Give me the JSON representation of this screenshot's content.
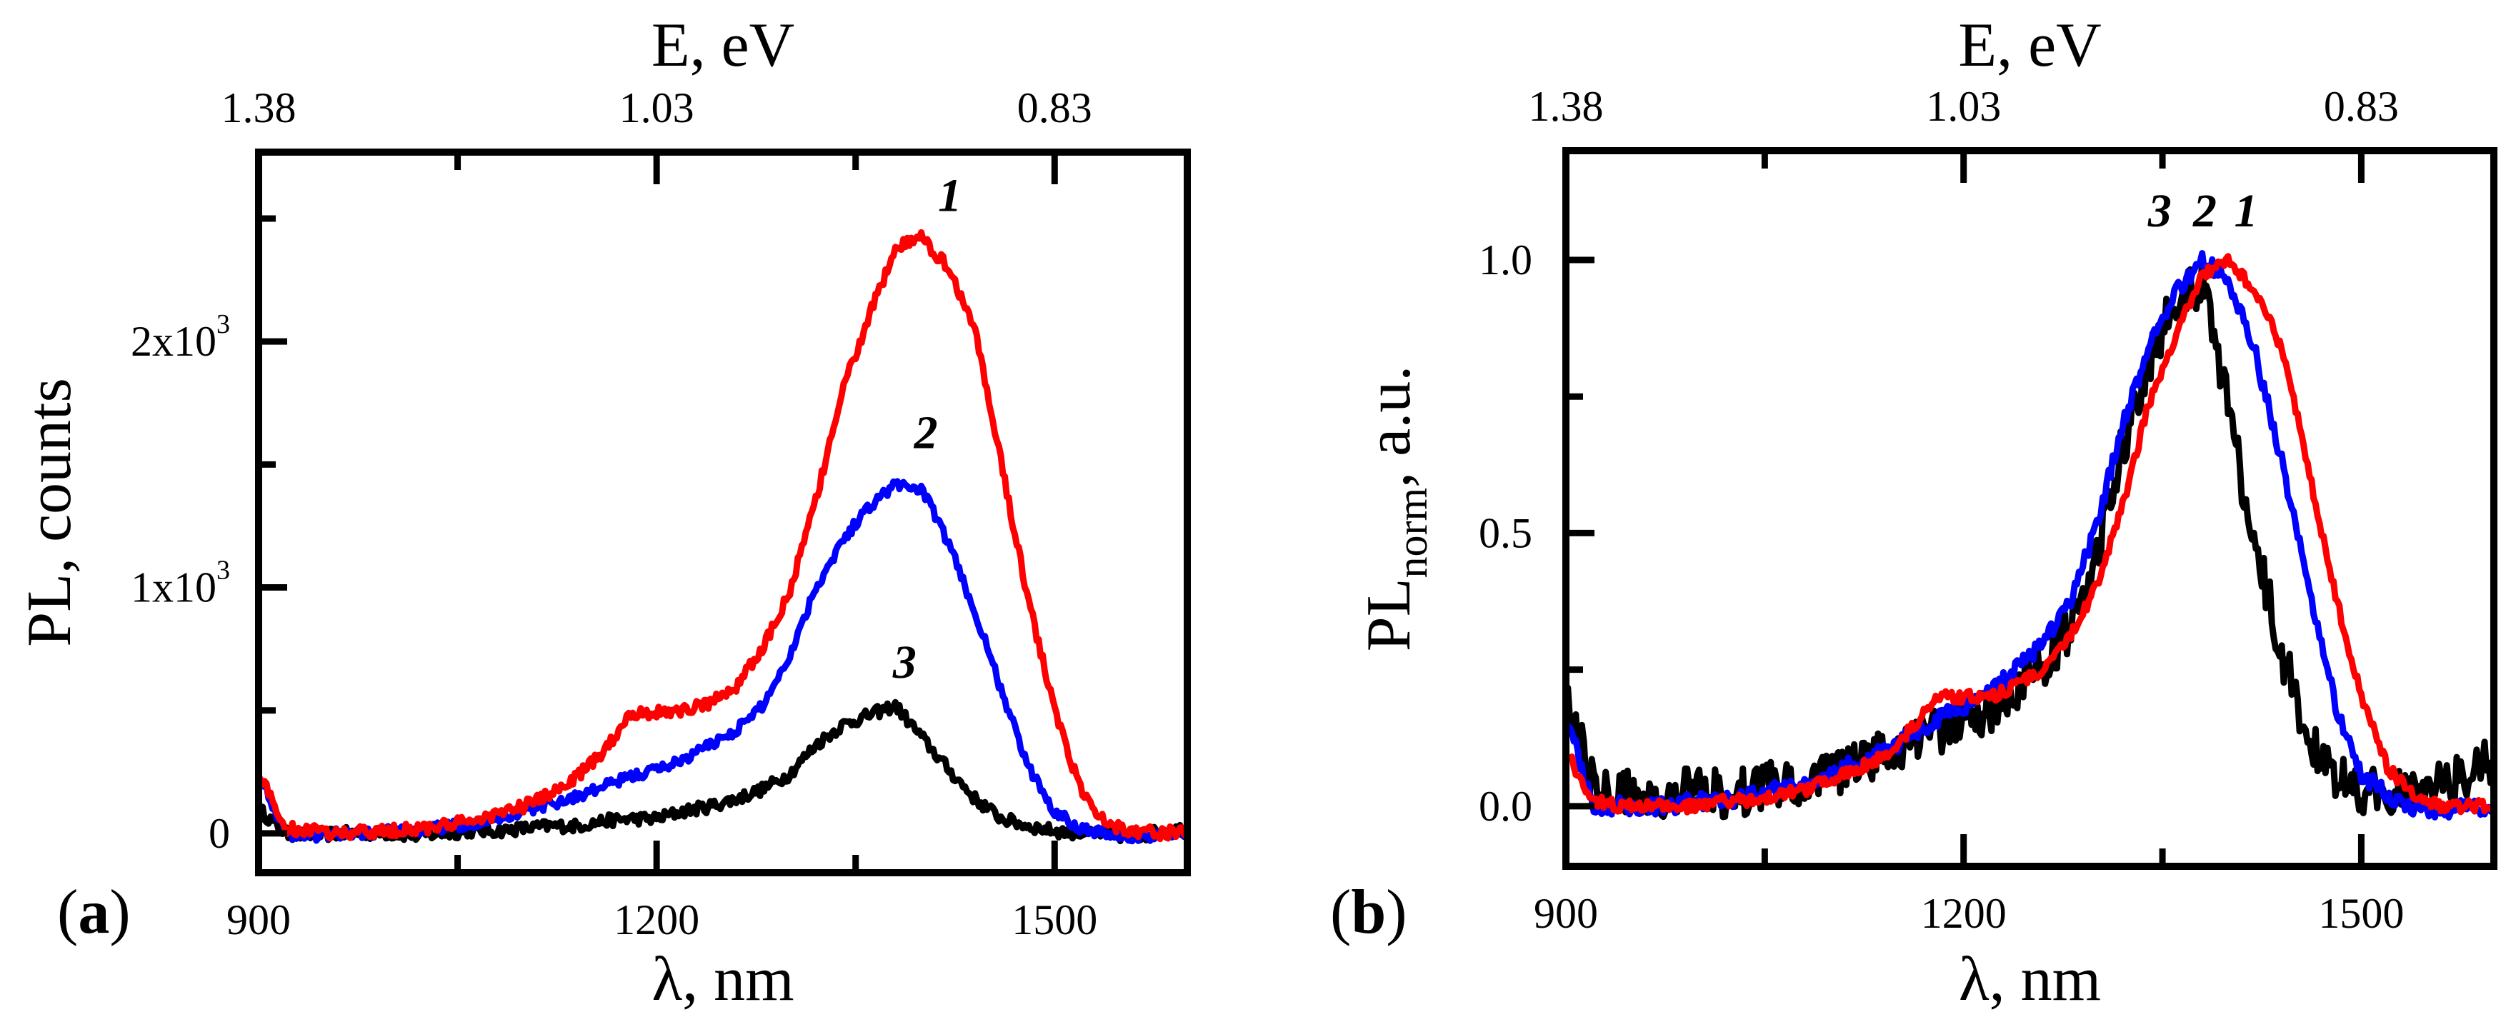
{
  "chart_data": [
    {
      "panel": "a",
      "panel_label_open": "(",
      "panel_label_letter": "a",
      "panel_label_close": ")",
      "type": "line",
      "xlabel": "λ, nm",
      "top_xlabel": "E, eV",
      "ylabel": "PL, counts",
      "xlim": [
        900,
        1600
      ],
      "ylim": [
        -160,
        2770
      ],
      "x_ticks": [
        {
          "value": 900,
          "label": "900"
        },
        {
          "value": 1200,
          "label": "1200"
        },
        {
          "value": 1500,
          "label": "1500"
        }
      ],
      "x_minor_ticks": [
        1050,
        1350
      ],
      "top_ticks": [
        {
          "value": 900,
          "label": "1.38"
        },
        {
          "value": 1200,
          "label": "1.03"
        },
        {
          "value": 1500,
          "label": "0.83"
        }
      ],
      "y_ticks": [
        {
          "value": 0,
          "label": "0",
          "exp": ""
        },
        {
          "value": 1000,
          "label": "1x10",
          "exp": "3"
        },
        {
          "value": 2000,
          "label": "2x10",
          "exp": "3"
        }
      ],
      "y_minor_ticks": [
        500,
        1500,
        2500
      ],
      "x": [
        900,
        920,
        940,
        960,
        980,
        1000,
        1020,
        1040,
        1060,
        1080,
        1100,
        1120,
        1140,
        1160,
        1180,
        1200,
        1220,
        1240,
        1260,
        1280,
        1300,
        1320,
        1340,
        1360,
        1380,
        1400,
        1420,
        1440,
        1460,
        1480,
        1500,
        1520,
        1540,
        1560,
        1580,
        1600
      ],
      "series": [
        {
          "name": "3",
          "color": "#000000",
          "noise": 25,
          "values": [
            100,
            0,
            -10,
            0,
            0,
            0,
            -10,
            0,
            10,
            10,
            20,
            30,
            30,
            50,
            60,
            60,
            90,
            110,
            140,
            180,
            240,
            360,
            440,
            480,
            520,
            390,
            260,
            140,
            60,
            30,
            10,
            0,
            0,
            -20,
            10,
            20
          ]
        },
        {
          "name": "2",
          "color": "#0000ff",
          "noise": 22,
          "values": [
            250,
            0,
            -10,
            0,
            0,
            10,
            15,
            25,
            40,
            60,
            90,
            120,
            150,
            190,
            230,
            260,
            300,
            360,
            420,
            520,
            720,
            1000,
            1190,
            1330,
            1420,
            1400,
            1180,
            900,
            580,
            270,
            90,
            20,
            0,
            -20,
            0,
            0
          ]
        },
        {
          "name": "1",
          "color": "#ff0000",
          "noise": 25,
          "values": [
            250,
            20,
            10,
            0,
            5,
            10,
            20,
            30,
            50,
            80,
            110,
            160,
            230,
            330,
            490,
            490,
            500,
            530,
            600,
            750,
            980,
            1350,
            1800,
            2100,
            2380,
            2420,
            2300,
            2050,
            1500,
            950,
            500,
            170,
            40,
            10,
            0,
            10
          ]
        }
      ],
      "annotations": [
        {
          "text": "1",
          "x": 1421,
          "y": 2594
        },
        {
          "text": "2",
          "x": 1403,
          "y": 1630
        },
        {
          "text": "3",
          "x": 1387,
          "y": 696
        }
      ]
    },
    {
      "panel": "b",
      "panel_label_open": "(",
      "panel_label_letter": "b",
      "panel_label_close": ")",
      "type": "line",
      "xlabel": "λ, nm",
      "top_xlabel": "E, eV",
      "ylabel_main": "PL",
      "ylabel_sub": "norm",
      "ylabel_tail": ", a.u.",
      "xlim": [
        900,
        1600
      ],
      "ylim": [
        -0.11,
        1.2
      ],
      "x_ticks": [
        {
          "value": 900,
          "label": "900"
        },
        {
          "value": 1200,
          "label": "1200"
        },
        {
          "value": 1500,
          "label": "1500"
        }
      ],
      "x_minor_ticks": [
        1050,
        1350
      ],
      "top_ticks": [
        {
          "value": 900,
          "label": "1.38"
        },
        {
          "value": 1200,
          "label": "1.03"
        },
        {
          "value": 1500,
          "label": "0.83"
        }
      ],
      "y_ticks": [
        {
          "value": 0,
          "label": "0.0",
          "exp": ""
        },
        {
          "value": 0.5,
          "label": "0.5",
          "exp": ""
        },
        {
          "value": 1.0,
          "label": "1.0",
          "exp": ""
        }
      ],
      "y_minor_ticks": [
        0.25,
        0.75
      ],
      "x": [
        900,
        920,
        940,
        960,
        980,
        1000,
        1020,
        1040,
        1060,
        1080,
        1100,
        1120,
        1140,
        1160,
        1180,
        1200,
        1220,
        1240,
        1260,
        1280,
        1300,
        1320,
        1340,
        1360,
        1380,
        1400,
        1420,
        1440,
        1460,
        1480,
        1500,
        1520,
        1540,
        1560,
        1580,
        1600
      ],
      "series": [
        {
          "name": "3",
          "color": "#000000",
          "noise": 0.045,
          "values": [
            0.19,
            0.05,
            0.02,
            0.03,
            0.02,
            0.03,
            0.02,
            0.03,
            0.04,
            0.05,
            0.06,
            0.08,
            0.1,
            0.12,
            0.14,
            0.16,
            0.18,
            0.22,
            0.26,
            0.33,
            0.45,
            0.66,
            0.82,
            0.92,
            0.96,
            0.72,
            0.48,
            0.28,
            0.13,
            0.06,
            0.03,
            0.02,
            0.03,
            0.04,
            0.06,
            0.08
          ]
        },
        {
          "name": "2",
          "color": "#0000ff",
          "noise": 0.016,
          "values": [
            0.17,
            0,
            0,
            0,
            0,
            0.01,
            0.01,
            0.02,
            0.03,
            0.04,
            0.06,
            0.08,
            0.1,
            0.13,
            0.16,
            0.18,
            0.21,
            0.25,
            0.3,
            0.37,
            0.51,
            0.7,
            0.84,
            0.94,
            1.0,
            0.96,
            0.83,
            0.63,
            0.41,
            0.19,
            0.06,
            0.02,
            0,
            -0.01,
            0,
            0
          ]
        },
        {
          "name": "1",
          "color": "#ff0000",
          "noise": 0.011,
          "values": [
            0.1,
            0.01,
            0,
            0,
            0,
            0,
            0.01,
            0.01,
            0.02,
            0.03,
            0.05,
            0.07,
            0.09,
            0.14,
            0.2,
            0.2,
            0.2,
            0.22,
            0.25,
            0.31,
            0.4,
            0.55,
            0.74,
            0.86,
            0.97,
            1.0,
            0.94,
            0.84,
            0.62,
            0.39,
            0.2,
            0.07,
            0.02,
            0,
            0,
            0
          ]
        }
      ],
      "annotations": [
        {
          "text": "3",
          "x": 1348,
          "y": 1.09
        },
        {
          "text": "2",
          "x": 1382,
          "y": 1.09
        },
        {
          "text": "1",
          "x": 1413,
          "y": 1.09
        }
      ]
    }
  ]
}
